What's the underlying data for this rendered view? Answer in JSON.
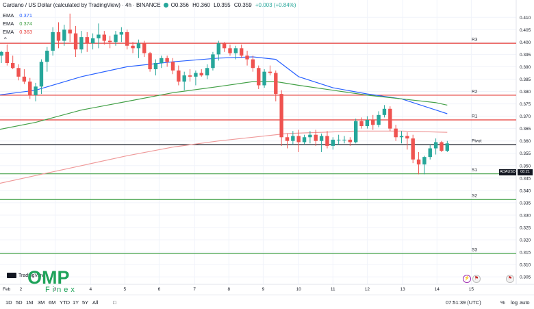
{
  "header": {
    "title": "Cardano / US Dollar (calculated by TradingView) · 4h · BINANCE",
    "ohlc": [
      "O0.356",
      "H0.360",
      "L0.355",
      "C0.359",
      "+0.003 (+0.84%)"
    ]
  },
  "emas": [
    {
      "label": "EMA",
      "value": "0.371",
      "color": "#2962ff"
    },
    {
      "label": "EMA",
      "value": "0.374",
      "color": "#43a047"
    },
    {
      "label": "EMA",
      "value": "0.363",
      "color": "#e53935"
    }
  ],
  "collapse_icon": "chevron-up-icon",
  "price_tag": {
    "symbol": "ADAUSD",
    "countdown": "08:21"
  },
  "watermark": {
    "brand_top": "OMP",
    "brand_bottom": "Finex",
    "provider": "TradingView"
  },
  "bottom_bar": {
    "timeframes": [
      "1D",
      "5D",
      "1M",
      "3M",
      "6M",
      "YTD",
      "1Y",
      "5Y",
      "All"
    ],
    "clock": "07:51:39 (UTC)",
    "percent": "%",
    "log": "log",
    "auto": "auto"
  },
  "colors": {
    "up": "#26a69a",
    "down": "#ef5350",
    "level": "#e53935",
    "support": "#43a047",
    "pivot": "#131722"
  },
  "chart_data": {
    "type": "candlestick",
    "ylim": [
      0.302,
      0.417
    ],
    "y_ticks": [
      "0.410",
      "0.405",
      "0.400",
      "0.395",
      "0.390",
      "0.385",
      "0.380",
      "0.375",
      "0.370",
      "0.365",
      "0.360",
      "0.355",
      "0.350",
      "0.345",
      "0.340",
      "0.335",
      "0.330",
      "0.325",
      "0.320",
      "0.315",
      "0.310",
      "0.305"
    ],
    "x_labels": [
      {
        "label": "Feb",
        "i": -3.2
      },
      {
        "label": "2",
        "i": 3.4
      },
      {
        "label": "3",
        "i": 9.4
      },
      {
        "label": "4",
        "i": 15.6
      },
      {
        "label": "5",
        "i": 21.6
      },
      {
        "label": "6",
        "i": 27.6
      },
      {
        "label": "7",
        "i": 33.8
      },
      {
        "label": "8",
        "i": 39.8
      },
      {
        "label": "9",
        "i": 45.8
      },
      {
        "label": "10",
        "i": 52
      },
      {
        "label": "11",
        "i": 58
      },
      {
        "label": "12",
        "i": 64
      },
      {
        "label": "13",
        "i": 70.2
      },
      {
        "label": "14",
        "i": 76.2
      },
      {
        "label": "15",
        "i": 82.2
      }
    ],
    "levels": [
      {
        "name": "R3",
        "value": 0.3995,
        "color": "#e53935"
      },
      {
        "name": "R2",
        "value": 0.3785,
        "color": "#e53935"
      },
      {
        "name": "R1",
        "value": 0.3685,
        "color": "#e53935"
      },
      {
        "name": "Pivot",
        "value": 0.3585,
        "color": "#131722"
      },
      {
        "name": "S1",
        "value": 0.3467,
        "color": "#43a047"
      },
      {
        "name": "S2",
        "value": 0.3363,
        "color": "#43a047"
      },
      {
        "name": "S3",
        "value": 0.3145,
        "color": "#43a047"
      }
    ],
    "candles": [
      [
        0.3945,
        0.3965,
        0.3915,
        0.396
      ],
      [
        0.396,
        0.399,
        0.3905,
        0.3915
      ],
      [
        0.3915,
        0.3945,
        0.389,
        0.3895
      ],
      [
        0.3895,
        0.391,
        0.3845,
        0.386
      ],
      [
        0.386,
        0.389,
        0.383,
        0.384
      ],
      [
        0.384,
        0.3855,
        0.377,
        0.3785
      ],
      [
        0.3785,
        0.3835,
        0.376,
        0.382
      ],
      [
        0.382,
        0.393,
        0.379,
        0.392
      ],
      [
        0.392,
        0.398,
        0.388,
        0.3965
      ],
      [
        0.3965,
        0.406,
        0.3945,
        0.404
      ],
      [
        0.404,
        0.408,
        0.3975,
        0.4005
      ],
      [
        0.4005,
        0.407,
        0.3985,
        0.405
      ],
      [
        0.405,
        0.4115,
        0.4,
        0.4035
      ],
      [
        0.4035,
        0.4065,
        0.394,
        0.397
      ],
      [
        0.397,
        0.4045,
        0.3955,
        0.402
      ],
      [
        0.402,
        0.404,
        0.396,
        0.3995
      ],
      [
        0.3995,
        0.4035,
        0.397,
        0.4015
      ],
      [
        0.4015,
        0.4075,
        0.3975,
        0.403
      ],
      [
        0.403,
        0.4045,
        0.399,
        0.4005
      ],
      [
        0.4005,
        0.4025,
        0.3975,
        0.4
      ],
      [
        0.4,
        0.4045,
        0.3985,
        0.403
      ],
      [
        0.403,
        0.406,
        0.4,
        0.404
      ],
      [
        0.404,
        0.405,
        0.397,
        0.3985
      ],
      [
        0.3985,
        0.4,
        0.3955,
        0.3975
      ],
      [
        0.3975,
        0.401,
        0.3935,
        0.3995
      ],
      [
        0.3995,
        0.4005,
        0.394,
        0.3955
      ],
      [
        0.3955,
        0.396,
        0.388,
        0.389
      ],
      [
        0.389,
        0.393,
        0.3865,
        0.3915
      ],
      [
        0.3915,
        0.3945,
        0.3895,
        0.3935
      ],
      [
        0.3935,
        0.3945,
        0.39,
        0.392
      ],
      [
        0.392,
        0.3935,
        0.387,
        0.3885
      ],
      [
        0.3885,
        0.3905,
        0.3825,
        0.384
      ],
      [
        0.384,
        0.388,
        0.3805,
        0.3865
      ],
      [
        0.3865,
        0.389,
        0.384,
        0.386
      ],
      [
        0.386,
        0.3885,
        0.3825,
        0.3875
      ],
      [
        0.3875,
        0.389,
        0.386,
        0.3865
      ],
      [
        0.3865,
        0.391,
        0.385,
        0.3895
      ],
      [
        0.3895,
        0.396,
        0.3885,
        0.395
      ],
      [
        0.395,
        0.4005,
        0.3925,
        0.3995
      ],
      [
        0.3995,
        0.4,
        0.396,
        0.3975
      ],
      [
        0.3975,
        0.399,
        0.3945,
        0.3955
      ],
      [
        0.3955,
        0.3985,
        0.393,
        0.3975
      ],
      [
        0.3975,
        0.399,
        0.3935,
        0.3945
      ],
      [
        0.3945,
        0.3965,
        0.3905,
        0.393
      ],
      [
        0.393,
        0.3945,
        0.388,
        0.3895
      ],
      [
        0.3895,
        0.3905,
        0.381,
        0.3825
      ],
      [
        0.3825,
        0.389,
        0.3815,
        0.388
      ],
      [
        0.388,
        0.3905,
        0.3865,
        0.3875
      ],
      [
        0.3875,
        0.3885,
        0.376,
        0.379
      ],
      [
        0.379,
        0.3805,
        0.358,
        0.3615
      ],
      [
        0.3615,
        0.363,
        0.357,
        0.36
      ],
      [
        0.36,
        0.364,
        0.3585,
        0.362
      ],
      [
        0.362,
        0.3645,
        0.3555,
        0.3595
      ],
      [
        0.3595,
        0.3625,
        0.3585,
        0.3615
      ],
      [
        0.3615,
        0.364,
        0.359,
        0.3625
      ],
      [
        0.3625,
        0.3645,
        0.358,
        0.36
      ],
      [
        0.36,
        0.363,
        0.3555,
        0.362
      ],
      [
        0.362,
        0.364,
        0.357,
        0.358
      ],
      [
        0.358,
        0.3615,
        0.3565,
        0.3605
      ],
      [
        0.3605,
        0.3625,
        0.3585,
        0.3605
      ],
      [
        0.3605,
        0.362,
        0.359,
        0.3605
      ],
      [
        0.3605,
        0.3615,
        0.358,
        0.3595
      ],
      [
        0.3595,
        0.369,
        0.359,
        0.368
      ],
      [
        0.368,
        0.3695,
        0.365,
        0.366
      ],
      [
        0.366,
        0.37,
        0.365,
        0.3685
      ],
      [
        0.3685,
        0.3705,
        0.3645,
        0.3665
      ],
      [
        0.3665,
        0.372,
        0.3655,
        0.3705
      ],
      [
        0.3705,
        0.3745,
        0.3695,
        0.373
      ],
      [
        0.373,
        0.374,
        0.364,
        0.365
      ],
      [
        0.365,
        0.3665,
        0.36,
        0.3615
      ],
      [
        0.3615,
        0.364,
        0.359,
        0.362
      ],
      [
        0.362,
        0.3635,
        0.3565,
        0.361
      ],
      [
        0.361,
        0.3625,
        0.351,
        0.3525
      ],
      [
        0.3525,
        0.3555,
        0.3465,
        0.3505
      ],
      [
        0.3505,
        0.354,
        0.3465,
        0.3535
      ],
      [
        0.3535,
        0.3585,
        0.3525,
        0.357
      ],
      [
        0.357,
        0.361,
        0.3545,
        0.3595
      ],
      [
        0.3595,
        0.36,
        0.3555,
        0.356
      ],
      [
        0.356,
        0.36,
        0.3555,
        0.359
      ]
    ],
    "ema_series": [
      {
        "color": "#2962ff",
        "points": [
          [
            -4,
            0.3775
          ],
          [
            6,
            0.3805
          ],
          [
            14,
            0.386
          ],
          [
            22,
            0.39
          ],
          [
            30,
            0.392
          ],
          [
            38,
            0.3935
          ],
          [
            44,
            0.394
          ],
          [
            48,
            0.393
          ],
          [
            52,
            0.386
          ],
          [
            58,
            0.3815
          ],
          [
            64,
            0.379
          ],
          [
            70,
            0.377
          ],
          [
            76,
            0.3725
          ],
          [
            78,
            0.371
          ]
        ]
      },
      {
        "color": "#43a047",
        "points": [
          [
            -4,
            0.363
          ],
          [
            6,
            0.3675
          ],
          [
            14,
            0.3725
          ],
          [
            22,
            0.376
          ],
          [
            30,
            0.3795
          ],
          [
            38,
            0.382
          ],
          [
            44,
            0.384
          ],
          [
            48,
            0.384
          ],
          [
            52,
            0.3825
          ],
          [
            58,
            0.3805
          ],
          [
            64,
            0.3785
          ],
          [
            70,
            0.377
          ],
          [
            76,
            0.3755
          ],
          [
            78,
            0.3745
          ]
        ]
      },
      {
        "color": "#ef9a9a",
        "points": [
          [
            -4,
            0.341
          ],
          [
            6,
            0.346
          ],
          [
            14,
            0.35
          ],
          [
            22,
            0.354
          ],
          [
            30,
            0.3575
          ],
          [
            38,
            0.36
          ],
          [
            44,
            0.3615
          ],
          [
            50,
            0.363
          ],
          [
            56,
            0.3635
          ],
          [
            62,
            0.364
          ],
          [
            70,
            0.364
          ],
          [
            78,
            0.3635
          ]
        ]
      }
    ]
  }
}
